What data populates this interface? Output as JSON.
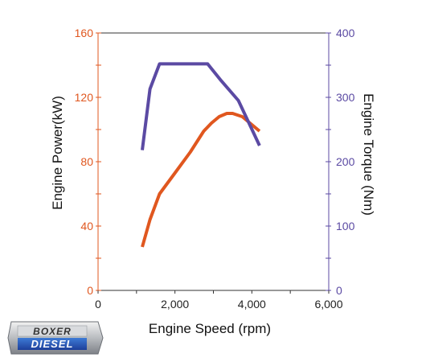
{
  "chart_data": {
    "type": "line",
    "title": "",
    "xlabel": "Engine Speed (rpm)",
    "ylabel_left": "Engine Power(kW)",
    "ylabel_right": "Engine Torque (Nm)",
    "xlim": [
      0,
      6000
    ],
    "ylim_left": [
      0,
      160
    ],
    "ylim_right": [
      0,
      400
    ],
    "x_ticks": [
      "0",
      "2,000",
      "4,000",
      "6,000"
    ],
    "y_left_ticks": [
      "0",
      "40",
      "80",
      "120",
      "160"
    ],
    "y_right_ticks": [
      "0",
      "100",
      "200",
      "300",
      "400"
    ],
    "grid": false,
    "series": [
      {
        "axis": "left",
        "color": "#e0571f",
        "x": [
          1150,
          1350,
          1600,
          2000,
          2400,
          2750,
          2950,
          3150,
          3350,
          3500,
          3750,
          4200
        ],
        "y": [
          27,
          44,
          60,
          73,
          86,
          99,
          104,
          108,
          110,
          110,
          108,
          99
        ]
      },
      {
        "axis": "right",
        "color": "#5b4aa3",
        "x": [
          1150,
          1350,
          1600,
          2000,
          2500,
          2850,
          3200,
          3650,
          4200
        ],
        "y": [
          218,
          313,
          352,
          352,
          352,
          352,
          326,
          295,
          225
        ]
      }
    ]
  },
  "logo": {
    "line1": "BOXER",
    "line2": "DIESEL"
  }
}
